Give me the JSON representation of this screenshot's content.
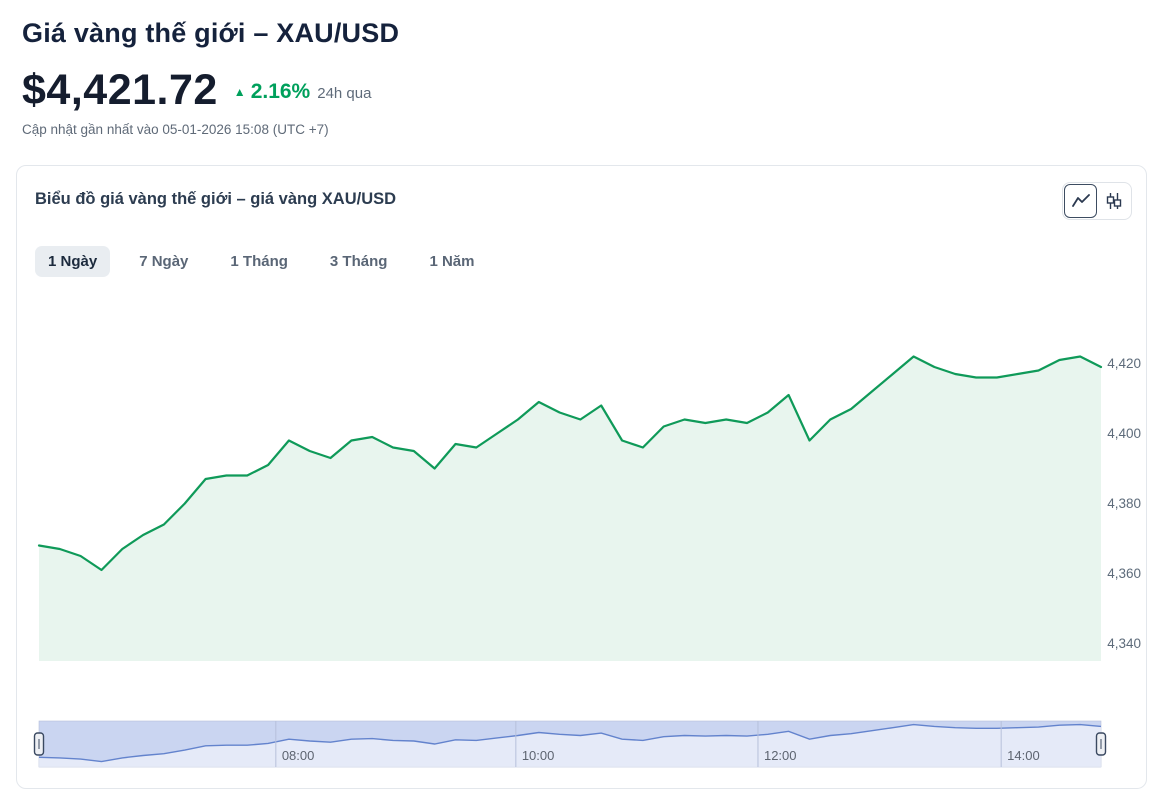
{
  "header": {
    "title": "Giá vàng thế giới – XAU/USD",
    "price": "$4,421.72",
    "change_arrow": "▲",
    "change_pct": "2.16%",
    "change_period": "24h qua",
    "updated": "Cập nhật gần nhất vào 05-01-2026 15:08 (UTC +7)"
  },
  "card": {
    "title": "Biểu đồ giá vàng thế giới – giá vàng XAU/USD",
    "chart_type_buttons": [
      {
        "name": "line-chart",
        "active": true
      },
      {
        "name": "candlestick-chart",
        "active": false
      }
    ],
    "tabs": [
      {
        "label": "1 Ngày",
        "active": true
      },
      {
        "label": "7 Ngày",
        "active": false
      },
      {
        "label": "1 Tháng",
        "active": false
      },
      {
        "label": "3 Tháng",
        "active": false
      },
      {
        "label": "1 Năm",
        "active": false
      }
    ]
  },
  "colors": {
    "accent_green": "#00A05C",
    "line_green": "#0F9A59",
    "area_fill": "#E8F5EE",
    "navigator_fill": "#CAD5F1",
    "navigator_line": "#6383CD",
    "navigator_grid": "#B6C0DB",
    "axis_label": "#5D6B7A",
    "handle_stroke": "#3A4961"
  },
  "chart_data": {
    "type": "area",
    "title": "Biểu đồ giá vàng thế giới – giá vàng XAU/USD",
    "ylim": [
      4335,
      4431
    ],
    "yticks": [
      {
        "value": 4420,
        "label": "4,420"
      },
      {
        "value": 4400,
        "label": "4,400"
      },
      {
        "value": 4380,
        "label": "4,380"
      },
      {
        "value": 4360,
        "label": "4,360"
      },
      {
        "value": 4340,
        "label": "4,340"
      }
    ],
    "xticks": [
      {
        "label": "08:00",
        "f": 0.223
      },
      {
        "label": "10:00",
        "f": 0.449
      },
      {
        "label": "12:00",
        "f": 0.677
      },
      {
        "label": "14:00",
        "f": 0.906
      }
    ],
    "values": [
      4368,
      4367,
      4365,
      4361,
      4367,
      4371,
      4374,
      4380,
      4387,
      4388,
      4388,
      4391,
      4398,
      4395,
      4393,
      4398,
      4399,
      4396,
      4395,
      4390,
      4397,
      4396,
      4400,
      4404,
      4409,
      4406,
      4404,
      4408,
      4398,
      4396,
      4402,
      4404,
      4403,
      4404,
      4403,
      4406,
      4411,
      4398,
      4404,
      4407,
      4412,
      4417,
      4422,
      4419,
      4417,
      4416,
      4416,
      4417,
      4418,
      4421,
      4422,
      4419
    ],
    "navigator": {
      "ylim": [
        4352,
        4428
      ]
    }
  }
}
